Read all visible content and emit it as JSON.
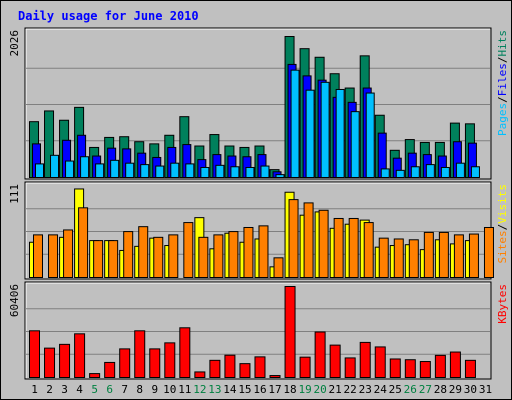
{
  "chart_data": {
    "type": "bar",
    "title": "Daily usage for June 2010",
    "colors": {
      "hits": "#00805c",
      "files": "#0000ff",
      "pages": "#00c0ff",
      "visits": "#ffff00",
      "sites": "#ff8000",
      "kbytes": "#ff0000",
      "weekday_label": "#000000",
      "weekend_label": "#008040",
      "panel": "#c0c0c0",
      "grid": "#808080"
    },
    "categories": [
      "1",
      "2",
      "3",
      "4",
      "5",
      "6",
      "7",
      "8",
      "9",
      "10",
      "11",
      "12",
      "13",
      "14",
      "15",
      "16",
      "17",
      "18",
      "19",
      "20",
      "21",
      "22",
      "23",
      "24",
      "25",
      "26",
      "27",
      "28",
      "29",
      "30",
      "31"
    ],
    "weekend_days": [
      "5",
      "6",
      "12",
      "13",
      "19",
      "20",
      "26",
      "27"
    ],
    "panels": [
      {
        "id": "top",
        "max_label": "2026",
        "ylim": [
          0,
          2026
        ],
        "right_labels": [
          {
            "text": "Pages",
            "color": "#00c0ff"
          },
          {
            "text": "/",
            "color": "#000000"
          },
          {
            "text": "Files",
            "color": "#0000ff"
          },
          {
            "text": "/",
            "color": "#000000"
          },
          {
            "text": "Hits",
            "color": "#00805c"
          }
        ],
        "series": [
          {
            "key": "hits",
            "values": [
              780,
              930,
              800,
              980,
              420,
              560,
              570,
              500,
              470,
              590,
              850,
              440,
              600,
              440,
              420,
              440,
              110,
              1970,
              1800,
              1680,
              1450,
              1250,
              1700,
              870,
              380,
              530,
              490,
              490,
              760,
              750,
              0
            ]
          },
          {
            "key": "files",
            "values": [
              470,
              0,
              520,
              590,
              300,
              410,
              400,
              340,
              280,
              420,
              460,
              250,
              320,
              300,
              290,
              320,
              80,
              1580,
              1420,
              1360,
              1120,
              1050,
              1250,
              620,
              270,
              340,
              320,
              300,
              500,
              480,
              0
            ]
          },
          {
            "key": "pages",
            "values": [
              190,
              310,
              230,
              290,
              190,
              240,
              200,
              180,
              160,
              200,
              190,
              140,
              170,
              150,
              140,
              160,
              40,
              1500,
              1220,
              1330,
              1230,
              920,
              1180,
              120,
              100,
              150,
              180,
              140,
              200,
              150,
              0
            ]
          }
        ]
      },
      {
        "id": "middle",
        "max_label": "111",
        "ylim": [
          0,
          111
        ],
        "right_labels": [
          {
            "text": "Sites",
            "color": "#ff8000"
          },
          {
            "text": "/",
            "color": "#000000"
          },
          {
            "text": "Visits",
            "color": "#ffff00"
          }
        ],
        "series": [
          {
            "key": "visits",
            "values": [
              43,
              0,
              49,
              108,
              45,
              45,
              33,
              38,
              48,
              39,
              0,
              73,
              35,
              54,
              43,
              47,
              13,
              104,
              76,
              80,
              60,
              65,
              70,
              37,
              39,
              40,
              34,
              46,
              41,
              45,
              0
            ]
          },
          {
            "key": "sites",
            "values": [
              52,
              52,
              58,
              85,
              45,
              45,
              56,
              62,
              49,
              52,
              67,
              49,
              52,
              56,
              61,
              63,
              24,
              95,
              91,
              82,
              72,
              72,
              67,
              48,
              47,
              46,
              55,
              55,
              52,
              53,
              61
            ]
          }
        ]
      },
      {
        "id": "bottom",
        "max_label": "60406",
        "ylim": [
          0,
          60406
        ],
        "right_labels": [
          {
            "text": "KBytes",
            "color": "#ff0000"
          }
        ],
        "series": [
          {
            "key": "kbytes",
            "values": [
              31000,
              19500,
              22000,
              29000,
              2600,
              10000,
              19000,
              31000,
              19000,
              23000,
              33000,
              3700,
              11400,
              14800,
              9200,
              13700,
              1300,
              60406,
              13500,
              30200,
              21500,
              13000,
              23300,
              20300,
              12300,
              11800,
              10600,
              14700,
              16900,
              11400,
              0
            ]
          }
        ]
      }
    ]
  }
}
